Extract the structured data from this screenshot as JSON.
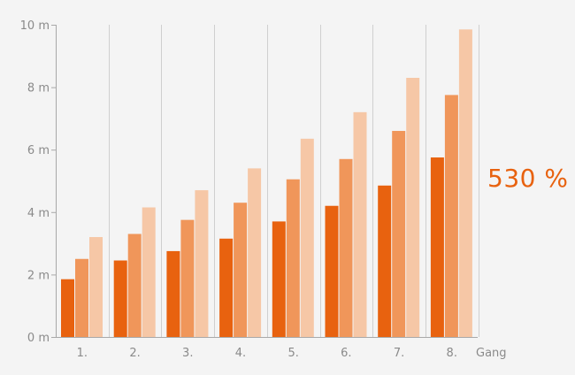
{
  "chart_data": {
    "type": "bar",
    "categories": [
      "1.",
      "2.",
      "3.",
      "4.",
      "5.",
      "6.",
      "7.",
      "8."
    ],
    "xlabel": "Gang",
    "ylabel": "",
    "ylim": [
      0,
      10
    ],
    "yticks": [
      "0 m",
      "2 m",
      "4 m",
      "6 m",
      "8 m",
      "10 m"
    ],
    "grid": "vertical",
    "series": [
      {
        "values": [
          1.85,
          2.45,
          2.75,
          3.15,
          3.7,
          4.2,
          4.85,
          5.75
        ],
        "color": "#e8620f"
      },
      {
        "values": [
          2.5,
          3.3,
          3.75,
          4.3,
          5.05,
          5.7,
          6.6,
          7.75
        ],
        "color": "#f0965a"
      },
      {
        "values": [
          3.2,
          4.15,
          4.7,
          5.4,
          6.35,
          7.2,
          8.3,
          9.85
        ],
        "color": "#f6c7a6"
      }
    ]
  },
  "highlight": {
    "text": "530 %",
    "color": "#e8620f"
  }
}
